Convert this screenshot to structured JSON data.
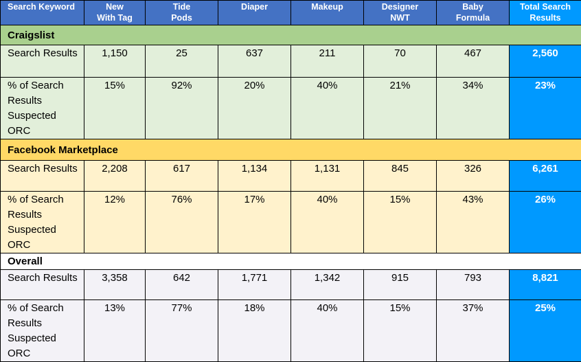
{
  "header": {
    "columns": [
      "Search Keyword",
      "New\nWith Tag",
      "Tide\nPods",
      "Diaper",
      "Makeup",
      "Designer\nNWT",
      "Baby\nFormula",
      "Total Search\nResults"
    ],
    "col0": "Search Keyword",
    "col1a": "New",
    "col1b": "With Tag",
    "col2a": "Tide",
    "col2b": "Pods",
    "col3": "Diaper",
    "col4": "Makeup",
    "col5a": "Designer",
    "col5b": "NWT",
    "col6a": "Baby",
    "col6b": "Formula",
    "col7a": "Total Search",
    "col7b": "Results"
  },
  "sections": [
    {
      "name": "Craigslist",
      "row1_label": "Search Results",
      "row1_values": [
        "1,150",
        "25",
        "637",
        "211",
        "70",
        "467"
      ],
      "row1_total": "2,560",
      "row2_label": "% of Search Results Suspected ORC",
      "row2_values": [
        "15%",
        "92%",
        "20%",
        "40%",
        "21%",
        "34%"
      ],
      "row2_total": "23%"
    },
    {
      "name": "Facebook Marketplace",
      "row1_label": "Search Results",
      "row1_values": [
        "2,208",
        "617",
        "1,134",
        "1,131",
        "845",
        "326"
      ],
      "row1_total": "6,261",
      "row2_label": "% of Search Results Suspected ORC",
      "row2_values": [
        "12%",
        "76%",
        "17%",
        "40%",
        "15%",
        "43%"
      ],
      "row2_total": "26%"
    },
    {
      "name": "Overall",
      "row1_label": "Search Results",
      "row1_values": [
        "3,358",
        "642",
        "1,771",
        "1,342",
        "915",
        "793"
      ],
      "row1_total": "8,821",
      "row2_label": "% of Search Results Suspected ORC",
      "row2_values": [
        "13%",
        "77%",
        "18%",
        "40%",
        "15%",
        "37%"
      ],
      "row2_total": "25%"
    }
  ],
  "colors": {
    "header_bg": "#4472c4",
    "total_bg": "#0099ff",
    "craigslist_section": "#a9d08e",
    "craigslist_rows": "#e2efda",
    "facebook_section": "#ffd966",
    "facebook_rows": "#fff2cc",
    "overall_rows": "#f3f2f7"
  }
}
